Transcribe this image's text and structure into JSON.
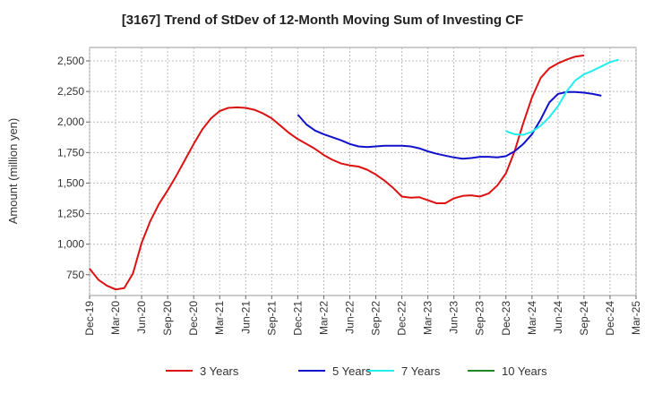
{
  "chart_data": {
    "type": "line",
    "title": "[3167]  Trend of StDev of 12-Month Moving Sum of Investing CF",
    "ylabel": "Amount (million yen)",
    "xlabel": "",
    "ylim": [
      580,
      2610
    ],
    "yticks": [
      750,
      1000,
      1250,
      1500,
      1750,
      2000,
      2250,
      2500
    ],
    "ytick_labels": [
      "750",
      "1,000",
      "1,250",
      "1,500",
      "1,750",
      "2,000",
      "2,250",
      "2,500"
    ],
    "x_tick_labels": [
      "Dec-19",
      "Mar-20",
      "Jun-20",
      "Sep-20",
      "Dec-20",
      "Mar-21",
      "Jun-21",
      "Sep-21",
      "Dec-21",
      "Mar-22",
      "Jun-22",
      "Sep-22",
      "Dec-22",
      "Mar-23",
      "Jun-23",
      "Sep-23",
      "Dec-23",
      "Mar-24",
      "Jun-24",
      "Sep-24",
      "Dec-24",
      "Mar-25"
    ],
    "x_start": "2019-12",
    "grid": true,
    "legend_position": "bottom",
    "series": [
      {
        "name": "3 Years",
        "color": "#dd1111",
        "start": "2019-12",
        "values": [
          800,
          710,
          660,
          630,
          640,
          760,
          1010,
          1190,
          1330,
          1440,
          1560,
          1690,
          1820,
          1940,
          2030,
          2090,
          2115,
          2120,
          2115,
          2100,
          2070,
          2030,
          1970,
          1910,
          1860,
          1820,
          1780,
          1730,
          1690,
          1660,
          1645,
          1635,
          1610,
          1570,
          1520,
          1460,
          1390,
          1380,
          1385,
          1360,
          1335,
          1335,
          1375,
          1395,
          1400,
          1390,
          1415,
          1480,
          1580,
          1760,
          1990,
          2200,
          2360,
          2440,
          2480,
          2510,
          2535,
          2545
        ]
      },
      {
        "name": "5 Years",
        "color": "#1111cc",
        "start": "2021-12",
        "values": [
          2060,
          1980,
          1930,
          1900,
          1875,
          1850,
          1820,
          1800,
          1795,
          1800,
          1805,
          1805,
          1805,
          1800,
          1785,
          1760,
          1740,
          1725,
          1710,
          1700,
          1705,
          1715,
          1715,
          1710,
          1720,
          1760,
          1820,
          1900,
          2020,
          2160,
          2230,
          2245,
          2245,
          2240,
          2230,
          2215
        ]
      },
      {
        "name": "7 Years",
        "color": "#22eeee",
        "start": "2023-12",
        "values": [
          1925,
          1900,
          1895,
          1920,
          1970,
          2040,
          2130,
          2250,
          2340,
          2390,
          2420,
          2455,
          2490,
          2510
        ]
      },
      {
        "name": "10 Years",
        "color": "#228822",
        "start": "2019-12",
        "values": []
      }
    ]
  }
}
